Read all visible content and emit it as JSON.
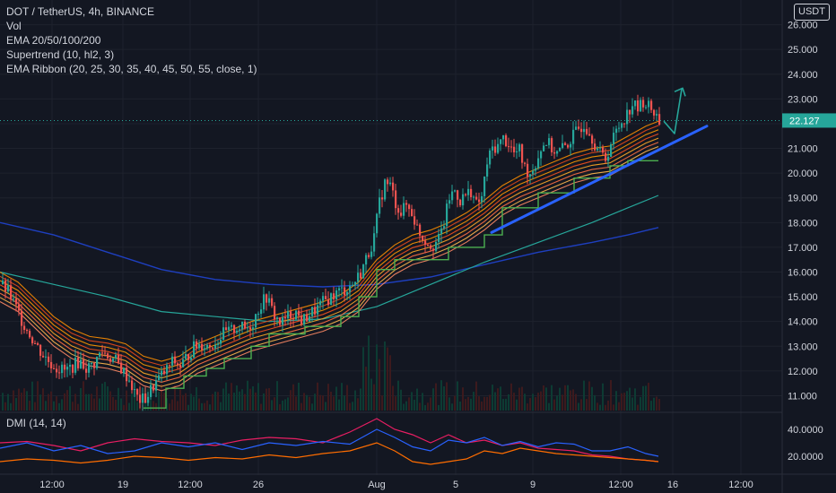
{
  "legend": {
    "title": "DOT / TetherUS, 4h, BINANCE",
    "vol": "Vol",
    "ema": "EMA 20/50/100/200",
    "supertrend": "Supertrend (10, hl2, 3)",
    "ribbon": "EMA Ribbon (20, 25, 30, 35, 40, 45, 50, 55, close, 1)"
  },
  "currency_button": "USDT",
  "dmi_label": "DMI (14, 14)",
  "colors": {
    "background": "#131722",
    "grid": "#1e222d",
    "up": "#26a69a",
    "down": "#ef5350",
    "price_line": "#26a69a",
    "trendline": "#2962ff",
    "arrow": "#26a69a",
    "supertrend": "#4caf50",
    "ema100": "#26a69a",
    "ema200": "#1e3fbf",
    "dmi_plus": "#2962ff",
    "dmi_minus": "#e91e63",
    "adx": "#ff6d00"
  },
  "chart_data": {
    "type": "candlestick",
    "symbol": "DOT / TetherUS",
    "interval": "4h",
    "exchange": "BINANCE",
    "ylim": [
      10.4,
      27.0
    ],
    "y_ticks": [
      "26.000",
      "25.000",
      "24.000",
      "23.000",
      "22.000",
      "21.000",
      "20.000",
      "19.000",
      "18.000",
      "17.000",
      "16.000",
      "15.000",
      "14.000",
      "13.000",
      "12.000",
      "11.000"
    ],
    "last_price": "22.127",
    "x_ticks": [
      "12:00",
      "19",
      "12:00",
      "26",
      "Aug",
      "5",
      "9",
      "12:00",
      "16",
      "12:00"
    ],
    "price_path": [
      [
        0,
        15.5
      ],
      [
        8,
        15.2
      ],
      [
        16,
        14.6
      ],
      [
        24,
        14.0
      ],
      [
        32,
        13.5
      ],
      [
        40,
        13.0
      ],
      [
        48,
        12.6
      ],
      [
        56,
        12.3
      ],
      [
        64,
        12.1
      ],
      [
        72,
        12.0
      ],
      [
        80,
        12.2
      ],
      [
        88,
        12.4
      ],
      [
        96,
        12.1
      ],
      [
        104,
        12.3
      ],
      [
        112,
        12.8
      ],
      [
        120,
        12.6
      ],
      [
        128,
        12.4
      ],
      [
        136,
        12.0
      ],
      [
        144,
        11.6
      ],
      [
        150,
        11.0
      ],
      [
        156,
        10.8
      ],
      [
        162,
        10.9
      ],
      [
        168,
        11.3
      ],
      [
        176,
        11.7
      ],
      [
        184,
        12.0
      ],
      [
        192,
        12.4
      ],
      [
        200,
        12.2
      ],
      [
        208,
        12.6
      ],
      [
        216,
        13.0
      ],
      [
        224,
        13.1
      ],
      [
        232,
        13.0
      ],
      [
        240,
        13.2
      ],
      [
        248,
        13.5
      ],
      [
        256,
        13.6
      ],
      [
        264,
        13.8
      ],
      [
        272,
        13.7
      ],
      [
        280,
        13.9
      ],
      [
        288,
        14.6
      ],
      [
        296,
        15.0
      ],
      [
        304,
        14.3
      ],
      [
        312,
        13.9
      ],
      [
        320,
        14.2
      ],
      [
        328,
        14.4
      ],
      [
        336,
        14.0
      ],
      [
        344,
        14.3
      ],
      [
        352,
        14.5
      ],
      [
        360,
        14.8
      ],
      [
        368,
        15.0
      ],
      [
        376,
        15.2
      ],
      [
        384,
        15.3
      ],
      [
        392,
        15.5
      ],
      [
        400,
        15.9
      ],
      [
        408,
        16.6
      ],
      [
        416,
        17.4
      ],
      [
        422,
        18.8
      ],
      [
        428,
        19.6
      ],
      [
        434,
        19.5
      ],
      [
        440,
        18.8
      ],
      [
        446,
        18.4
      ],
      [
        452,
        18.7
      ],
      [
        458,
        18.4
      ],
      [
        464,
        17.8
      ],
      [
        470,
        17.4
      ],
      [
        476,
        17.2
      ],
      [
        482,
        17.1
      ],
      [
        488,
        17.3
      ],
      [
        494,
        18.0
      ],
      [
        500,
        19.0
      ],
      [
        506,
        19.3
      ],
      [
        512,
        18.9
      ],
      [
        518,
        19.1
      ],
      [
        524,
        19.3
      ],
      [
        530,
        18.7
      ],
      [
        536,
        19.0
      ],
      [
        542,
        20.4
      ],
      [
        548,
        21.0
      ],
      [
        554,
        21.1
      ],
      [
        560,
        21.4
      ],
      [
        566,
        21.2
      ],
      [
        572,
        20.8
      ],
      [
        578,
        20.9
      ],
      [
        584,
        20.2
      ],
      [
        590,
        20.0
      ],
      [
        596,
        20.4
      ],
      [
        602,
        21.0
      ],
      [
        608,
        21.3
      ],
      [
        614,
        21.0
      ],
      [
        620,
        20.8
      ],
      [
        626,
        21.0
      ],
      [
        632,
        21.2
      ],
      [
        638,
        21.5
      ],
      [
        644,
        21.8
      ],
      [
        650,
        22.0
      ],
      [
        656,
        21.7
      ],
      [
        662,
        21.2
      ],
      [
        668,
        20.8
      ],
      [
        674,
        20.6
      ],
      [
        680,
        21.2
      ],
      [
        686,
        21.7
      ],
      [
        692,
        22.1
      ],
      [
        698,
        22.4
      ],
      [
        704,
        22.8
      ],
      [
        710,
        22.6
      ],
      [
        716,
        22.9
      ],
      [
        722,
        22.7
      ],
      [
        728,
        22.5
      ],
      [
        734,
        22.1
      ]
    ],
    "ema_ribbon_path": [
      [
        0,
        15.4
      ],
      [
        20,
        15.0
      ],
      [
        40,
        14.3
      ],
      [
        60,
        13.6
      ],
      [
        80,
        13.1
      ],
      [
        100,
        12.8
      ],
      [
        120,
        12.7
      ],
      [
        140,
        12.5
      ],
      [
        160,
        12.0
      ],
      [
        180,
        11.8
      ],
      [
        200,
        12.0
      ],
      [
        220,
        12.5
      ],
      [
        240,
        12.8
      ],
      [
        260,
        13.1
      ],
      [
        280,
        13.4
      ],
      [
        300,
        13.6
      ],
      [
        320,
        13.8
      ],
      [
        340,
        14.0
      ],
      [
        360,
        14.2
      ],
      [
        380,
        14.5
      ],
      [
        400,
        15.0
      ],
      [
        420,
        15.9
      ],
      [
        440,
        16.5
      ],
      [
        460,
        16.9
      ],
      [
        480,
        17.1
      ],
      [
        500,
        17.4
      ],
      [
        520,
        17.8
      ],
      [
        540,
        18.3
      ],
      [
        560,
        18.9
      ],
      [
        580,
        19.3
      ],
      [
        600,
        19.6
      ],
      [
        620,
        19.9
      ],
      [
        640,
        20.2
      ],
      [
        660,
        20.4
      ],
      [
        680,
        20.5
      ],
      [
        700,
        20.9
      ],
      [
        720,
        21.3
      ],
      [
        734,
        21.5
      ]
    ],
    "ema100_path": [
      [
        0,
        16.0
      ],
      [
        60,
        15.5
      ],
      [
        120,
        15.0
      ],
      [
        180,
        14.4
      ],
      [
        240,
        14.2
      ],
      [
        300,
        14.0
      ],
      [
        360,
        14.1
      ],
      [
        420,
        14.6
      ],
      [
        480,
        15.5
      ],
      [
        540,
        16.4
      ],
      [
        600,
        17.2
      ],
      [
        660,
        18.0
      ],
      [
        700,
        18.6
      ],
      [
        734,
        19.1
      ]
    ],
    "ema200_path": [
      [
        0,
        18.0
      ],
      [
        60,
        17.5
      ],
      [
        120,
        16.8
      ],
      [
        180,
        16.1
      ],
      [
        240,
        15.7
      ],
      [
        300,
        15.5
      ],
      [
        360,
        15.4
      ],
      [
        420,
        15.5
      ],
      [
        480,
        15.8
      ],
      [
        540,
        16.3
      ],
      [
        600,
        16.8
      ],
      [
        660,
        17.2
      ],
      [
        700,
        17.5
      ],
      [
        734,
        17.8
      ]
    ],
    "supertrend_path": [
      [
        160,
        10.5
      ],
      [
        185,
        10.5
      ],
      [
        185,
        11.3
      ],
      [
        205,
        11.3
      ],
      [
        205,
        11.8
      ],
      [
        230,
        11.8
      ],
      [
        230,
        12.1
      ],
      [
        250,
        12.1
      ],
      [
        250,
        12.5
      ],
      [
        280,
        12.5
      ],
      [
        280,
        13.0
      ],
      [
        300,
        13.0
      ],
      [
        300,
        13.5
      ],
      [
        340,
        13.5
      ],
      [
        340,
        13.8
      ],
      [
        380,
        13.8
      ],
      [
        380,
        14.2
      ],
      [
        400,
        14.2
      ],
      [
        400,
        15.0
      ],
      [
        420,
        15.0
      ],
      [
        420,
        16.1
      ],
      [
        440,
        16.1
      ],
      [
        440,
        16.5
      ],
      [
        500,
        16.5
      ],
      [
        500,
        17.0
      ],
      [
        540,
        17.0
      ],
      [
        540,
        17.5
      ],
      [
        560,
        17.5
      ],
      [
        560,
        18.6
      ],
      [
        600,
        18.6
      ],
      [
        600,
        19.2
      ],
      [
        640,
        19.2
      ],
      [
        640,
        19.8
      ],
      [
        680,
        19.8
      ],
      [
        680,
        20.3
      ],
      [
        700,
        20.3
      ],
      [
        700,
        20.5
      ],
      [
        734,
        20.5
      ]
    ],
    "trendline": [
      [
        548,
        17.6
      ],
      [
        788,
        21.9
      ]
    ],
    "arrow_projection": [
      [
        740,
        22.1
      ],
      [
        752,
        21.6
      ],
      [
        760,
        23.4
      ]
    ],
    "dmi": {
      "ylim": [
        8,
        52
      ],
      "y_ticks": [
        "40.0000",
        "20.0000"
      ],
      "plus_di": [
        [
          0,
          26
        ],
        [
          30,
          30
        ],
        [
          60,
          24
        ],
        [
          90,
          28
        ],
        [
          120,
          22
        ],
        [
          150,
          24
        ],
        [
          180,
          30
        ],
        [
          210,
          27
        ],
        [
          240,
          30
        ],
        [
          270,
          25
        ],
        [
          300,
          30
        ],
        [
          330,
          28
        ],
        [
          360,
          31
        ],
        [
          390,
          29
        ],
        [
          420,
          40
        ],
        [
          440,
          34
        ],
        [
          460,
          27
        ],
        [
          480,
          24
        ],
        [
          500,
          32
        ],
        [
          520,
          30
        ],
        [
          540,
          34
        ],
        [
          560,
          28
        ],
        [
          580,
          31
        ],
        [
          600,
          27
        ],
        [
          620,
          30
        ],
        [
          640,
          29
        ],
        [
          660,
          24
        ],
        [
          680,
          24
        ],
        [
          700,
          27
        ],
        [
          720,
          22
        ],
        [
          734,
          20
        ]
      ],
      "minus_di": [
        [
          0,
          30
        ],
        [
          30,
          31
        ],
        [
          60,
          28
        ],
        [
          90,
          24
        ],
        [
          120,
          30
        ],
        [
          150,
          33
        ],
        [
          180,
          31
        ],
        [
          210,
          30
        ],
        [
          240,
          28
        ],
        [
          270,
          32
        ],
        [
          300,
          34
        ],
        [
          330,
          33
        ],
        [
          360,
          30
        ],
        [
          390,
          38
        ],
        [
          420,
          48
        ],
        [
          440,
          40
        ],
        [
          460,
          36
        ],
        [
          480,
          30
        ],
        [
          500,
          36
        ],
        [
          520,
          30
        ],
        [
          540,
          32
        ],
        [
          560,
          28
        ],
        [
          580,
          30
        ],
        [
          600,
          26
        ],
        [
          620,
          25
        ],
        [
          640,
          24
        ],
        [
          660,
          21
        ],
        [
          680,
          20
        ],
        [
          700,
          18
        ],
        [
          720,
          17
        ],
        [
          734,
          16
        ]
      ],
      "adx": [
        [
          0,
          16
        ],
        [
          30,
          18
        ],
        [
          60,
          17
        ],
        [
          90,
          15
        ],
        [
          120,
          17
        ],
        [
          150,
          20
        ],
        [
          180,
          19
        ],
        [
          210,
          17
        ],
        [
          240,
          19
        ],
        [
          270,
          18
        ],
        [
          300,
          21
        ],
        [
          330,
          19
        ],
        [
          360,
          22
        ],
        [
          390,
          24
        ],
        [
          420,
          30
        ],
        [
          440,
          24
        ],
        [
          460,
          16
        ],
        [
          480,
          14
        ],
        [
          500,
          16
        ],
        [
          520,
          18
        ],
        [
          540,
          24
        ],
        [
          560,
          22
        ],
        [
          580,
          26
        ],
        [
          600,
          24
        ],
        [
          620,
          22
        ],
        [
          640,
          21
        ],
        [
          660,
          20
        ],
        [
          680,
          19
        ],
        [
          700,
          18
        ],
        [
          720,
          17
        ],
        [
          734,
          16
        ]
      ]
    }
  }
}
